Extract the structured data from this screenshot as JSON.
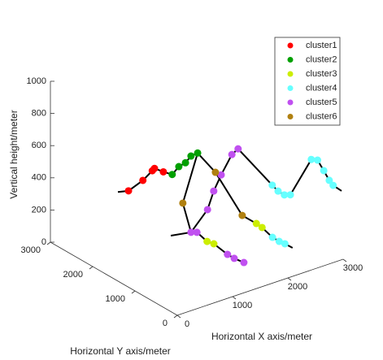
{
  "chart_data": {
    "type": "scatter3d",
    "xlabel": "Horizontal X axis/meter",
    "ylabel": "Horizontal Y axis/meter",
    "zlabel": "Vertical height/meter",
    "xlim": [
      0,
      3000
    ],
    "xticks": [
      0,
      1000,
      2000,
      3000
    ],
    "ylim": [
      0,
      3000
    ],
    "yticks": [
      0,
      1000,
      2000,
      3000
    ],
    "zlim": [
      0,
      1000
    ],
    "zticks": [
      0,
      200,
      400,
      600,
      800,
      1000
    ],
    "legend": "upper right",
    "series": [
      {
        "name": "cluster1",
        "color": "#ff0000",
        "x": [
          1030,
          1290,
          1460,
          1500,
          1660
        ],
        "y": [
          2500,
          2500,
          2500,
          2500,
          2500
        ],
        "z": [
          275,
          310,
          350,
          360,
          320
        ]
      },
      {
        "name": "cluster2",
        "color": "#00a000",
        "x": [
          1820,
          1940,
          2060,
          2160,
          2280
        ],
        "y": [
          2500,
          2500,
          2500,
          2500,
          2500
        ],
        "z": [
          285,
          320,
          330,
          360,
          365
        ]
      },
      {
        "name": "cluster3",
        "color": "#ccee00",
        "x": [
          2080,
          2130,
          1610,
          1640
        ],
        "y": [
          850,
          780,
          1400,
          1280
        ],
        "z": [
          200,
          180,
          60,
          60
        ]
      },
      {
        "name": "cluster4",
        "color": "#66ffff",
        "x": [
          2150,
          2210,
          2260,
          2765,
          2810,
          2870,
          2940,
          2860,
          2950,
          2940,
          2970,
          3010
        ],
        "y": [
          560,
          480,
          410,
          1370,
          1290,
          1220,
          1170,
          570,
          540,
          380,
          290,
          250
        ],
        "z": [
          150,
          130,
          120,
          280,
          250,
          230,
          230,
          550,
          540,
          500,
          450,
          420
        ]
      },
      {
        "name": "cluster5",
        "color": "#c050f0",
        "x": [
          1480,
          1610,
          1650,
          1680,
          1740,
          1480,
          1600,
          1750,
          2020,
          2140
        ],
        "y": [
          1610,
          1640,
          970,
          850,
          700,
          1220,
          1230,
          1250,
          1350,
          1360
        ],
        "z": [
          100,
          80,
          40,
          30,
          20,
          300,
          400,
          480,
          560,
          580
        ]
      },
      {
        "name": "cluster6",
        "color": "#b08010",
        "x": [
          1990,
          1920,
          850
        ],
        "y": [
          1700,
          975,
          980
        ],
        "z": [
          400,
          250,
          450
        ]
      }
    ],
    "curves": [
      {
        "color": "#000000",
        "x": [
          838,
          1030,
          1290,
          1460,
          1500,
          1660,
          1820,
          1940,
          2060,
          2160,
          2280,
          1990,
          1920,
          2080,
          2130,
          2150,
          2210,
          2260,
          2330
        ],
        "y": [
          2500,
          2500,
          2500,
          2500,
          2500,
          2500,
          2500,
          2500,
          2500,
          2500,
          2500,
          1700,
          975,
          850,
          780,
          560,
          480,
          410,
          320
        ],
        "z": [
          290,
          275,
          310,
          350,
          360,
          320,
          285,
          320,
          330,
          360,
          365,
          400,
          250,
          200,
          180,
          150,
          130,
          120,
          100
        ]
      },
      {
        "color": "#000000",
        "x": [
          2280,
          850,
          1480,
          1610,
          1610,
          1640,
          1650,
          1680,
          1740
        ],
        "y": [
          2500,
          980,
          1610,
          1640,
          1400,
          1280,
          970,
          850,
          700
        ],
        "z": [
          365,
          450,
          100,
          80,
          60,
          60,
          40,
          30,
          20
        ]
      },
      {
        "color": "#000000",
        "x": [
          1247,
          1480,
          1480,
          1600,
          1750,
          2020,
          2140,
          2765,
          2810,
          2870,
          2940,
          2860,
          2950,
          2940,
          2970,
          3010,
          3124
        ],
        "y": [
          1784,
          1610,
          1220,
          1230,
          1250,
          1350,
          1360,
          1370,
          1290,
          1220,
          1170,
          570,
          540,
          380,
          290,
          250,
          200
        ],
        "z": [
          80,
          100,
          300,
          400,
          480,
          560,
          580,
          280,
          250,
          230,
          230,
          550,
          540,
          500,
          450,
          420,
          380
        ]
      }
    ]
  }
}
